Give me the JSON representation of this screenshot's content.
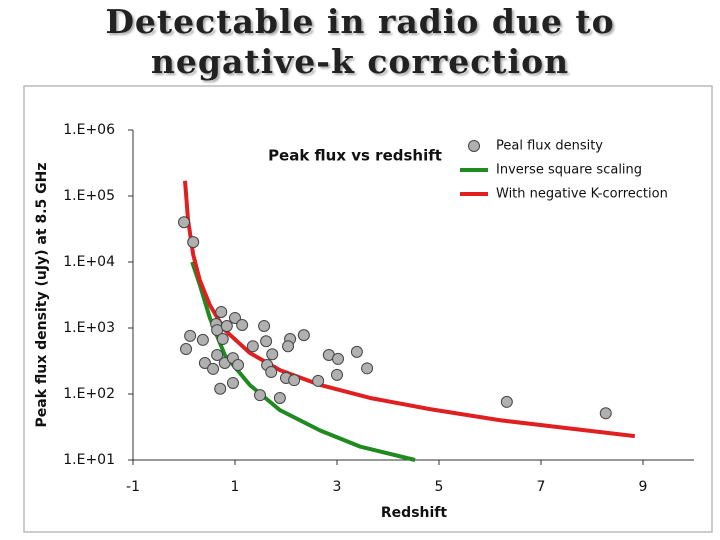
{
  "slide_title": [
    "Detectable in radio due to",
    "negative-k correction"
  ],
  "chart_data": {
    "type": "scatter",
    "title": "Peak flux vs redshift",
    "x_label": "Redshift",
    "y_label": "Peak flux density (uJy) at 8.5 GHz",
    "xlim": [
      -1,
      10
    ],
    "xticks": [
      -1,
      1,
      3,
      5,
      7,
      9
    ],
    "ylim": [
      10,
      1000000
    ],
    "log_y": true,
    "yticks": [
      {
        "value": 10,
        "label": "1.E+01"
      },
      {
        "value": 100,
        "label": "1.E+02"
      },
      {
        "value": 1000,
        "label": "1.E+03"
      },
      {
        "value": 10000,
        "label": "1.E+04"
      },
      {
        "value": 100000,
        "label": "1.E+05"
      },
      {
        "value": 1000000,
        "label": "1.E+06"
      }
    ],
    "grid": false,
    "legend": "upper right",
    "series": [
      {
        "name": "Peal flux density",
        "color": "#b0b0b0",
        "mode": "markers",
        "x": [
          0.0,
          0.18,
          0.12,
          0.04,
          0.37,
          0.41,
          0.57,
          0.63,
          0.65,
          0.65,
          0.73,
          0.76,
          0.71,
          0.84,
          0.8,
          0.96,
          1.0,
          0.96,
          1.06,
          1.14,
          1.35,
          1.57,
          1.61,
          1.49,
          1.63,
          1.73,
          1.71,
          1.88,
          2.0,
          2.08,
          2.04,
          2.16,
          2.35,
          2.63,
          2.84,
          3.02,
          3.0,
          3.39,
          3.59,
          6.33,
          8.27
        ],
        "values": [
          40000,
          20000,
          760,
          480,
          660,
          295,
          240,
          1150,
          930,
          390,
          1750,
          680,
          120,
          1070,
          295,
          350,
          1420,
          147,
          275,
          1110,
          530,
          1070,
          630,
          96,
          275,
          400,
          215,
          87,
          175,
          680,
          530,
          162,
          780,
          158,
          390,
          340,
          195,
          435,
          245,
          76,
          51
        ]
      },
      {
        "name": "Inverse square scaling",
        "color": "#1f8a1f",
        "mode": "line",
        "x": [
          0.16,
          0.31,
          0.51,
          0.8,
          1.29,
          1.88,
          2.67,
          3.45,
          4.53
        ],
        "values": [
          10000,
          4500,
          1400,
          390,
          137,
          57,
          28,
          16,
          10
        ]
      },
      {
        "name": "With negative K-correction",
        "color": "#e02020",
        "mode": "line",
        "x": [
          0.02,
          0.08,
          0.18,
          0.31,
          0.51,
          0.8,
          1.29,
          1.88,
          2.67,
          3.65,
          4.82,
          6.2,
          7.57,
          8.84
        ],
        "values": [
          170000,
          43000,
          13000,
          5300,
          2200,
          930,
          420,
          230,
          137,
          87,
          59,
          40,
          30,
          23
        ]
      }
    ]
  }
}
